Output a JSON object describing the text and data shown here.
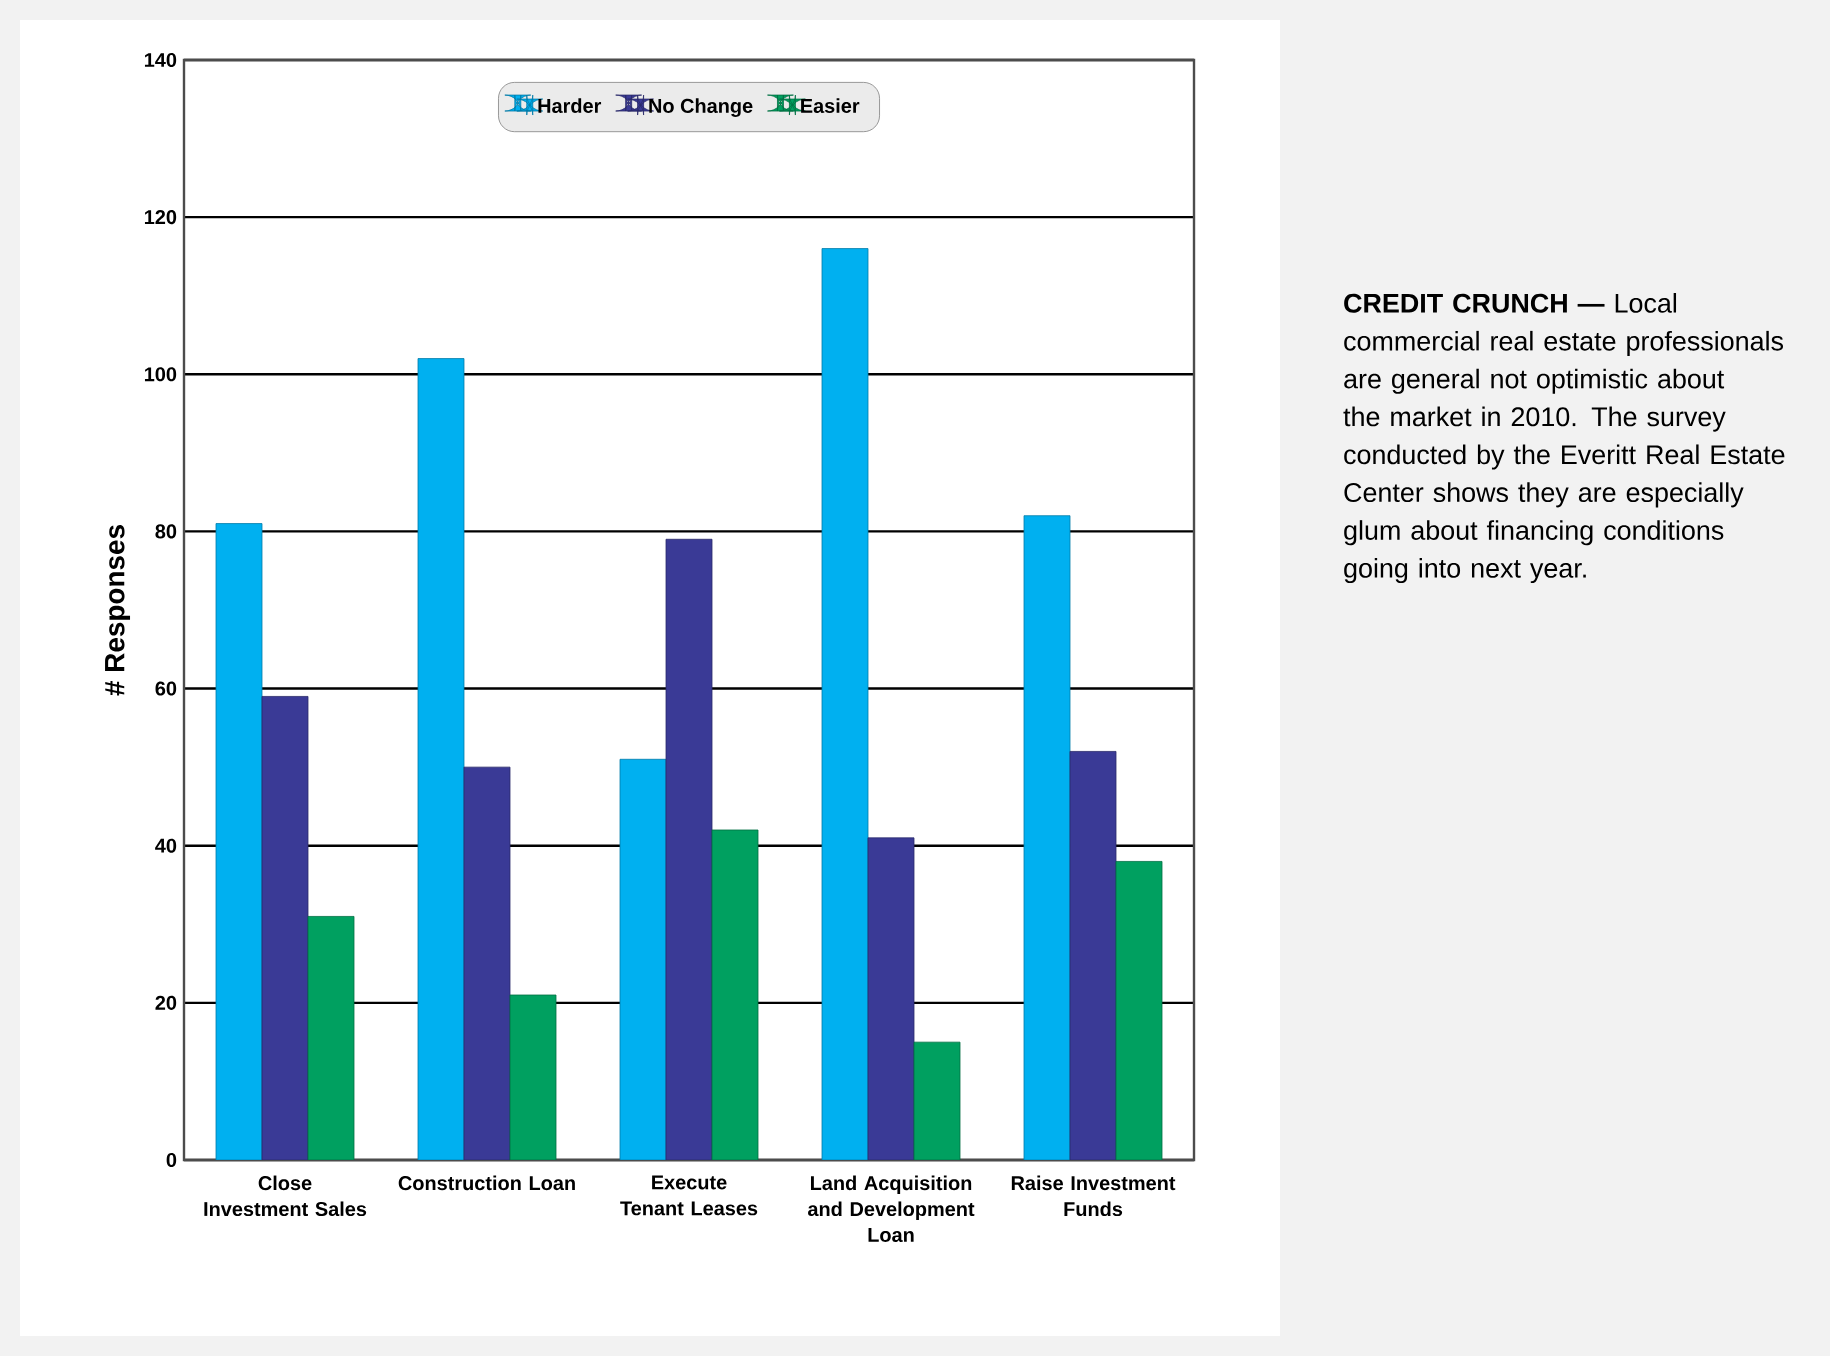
{
  "chart_data": {
    "type": "bar",
    "ylabel": "# Responses",
    "categories": [
      "Close Investment Sales",
      "Construction Loan",
      "Execute Tenant Leases",
      "Land Acquisition and Development Loan",
      "Raise Investment Funds"
    ],
    "series": [
      {
        "name": "Harder",
        "color": "#00b0f0",
        "values": [
          81,
          102,
          51,
          116,
          82
        ]
      },
      {
        "name": "No Change",
        "color": "#3a3a96",
        "values": [
          59,
          50,
          79,
          41,
          52
        ]
      },
      {
        "name": "Easier",
        "color": "#00a060",
        "values": [
          31,
          21,
          42,
          15,
          38
        ]
      }
    ],
    "ylim": [
      0,
      140
    ],
    "yticks": [
      0,
      20,
      40,
      60,
      80,
      100,
      120,
      140
    ],
    "grid": "y",
    "legend": "top",
    "annotations": [
      "**CREDIT CRUNCH —** Local commercial real estate professionals are general not optimistic about the market in 2010. The survey conducted by the Everitt Real Estate Center shows they are especially glum about financing conditions going into next year."
    ]
  }
}
